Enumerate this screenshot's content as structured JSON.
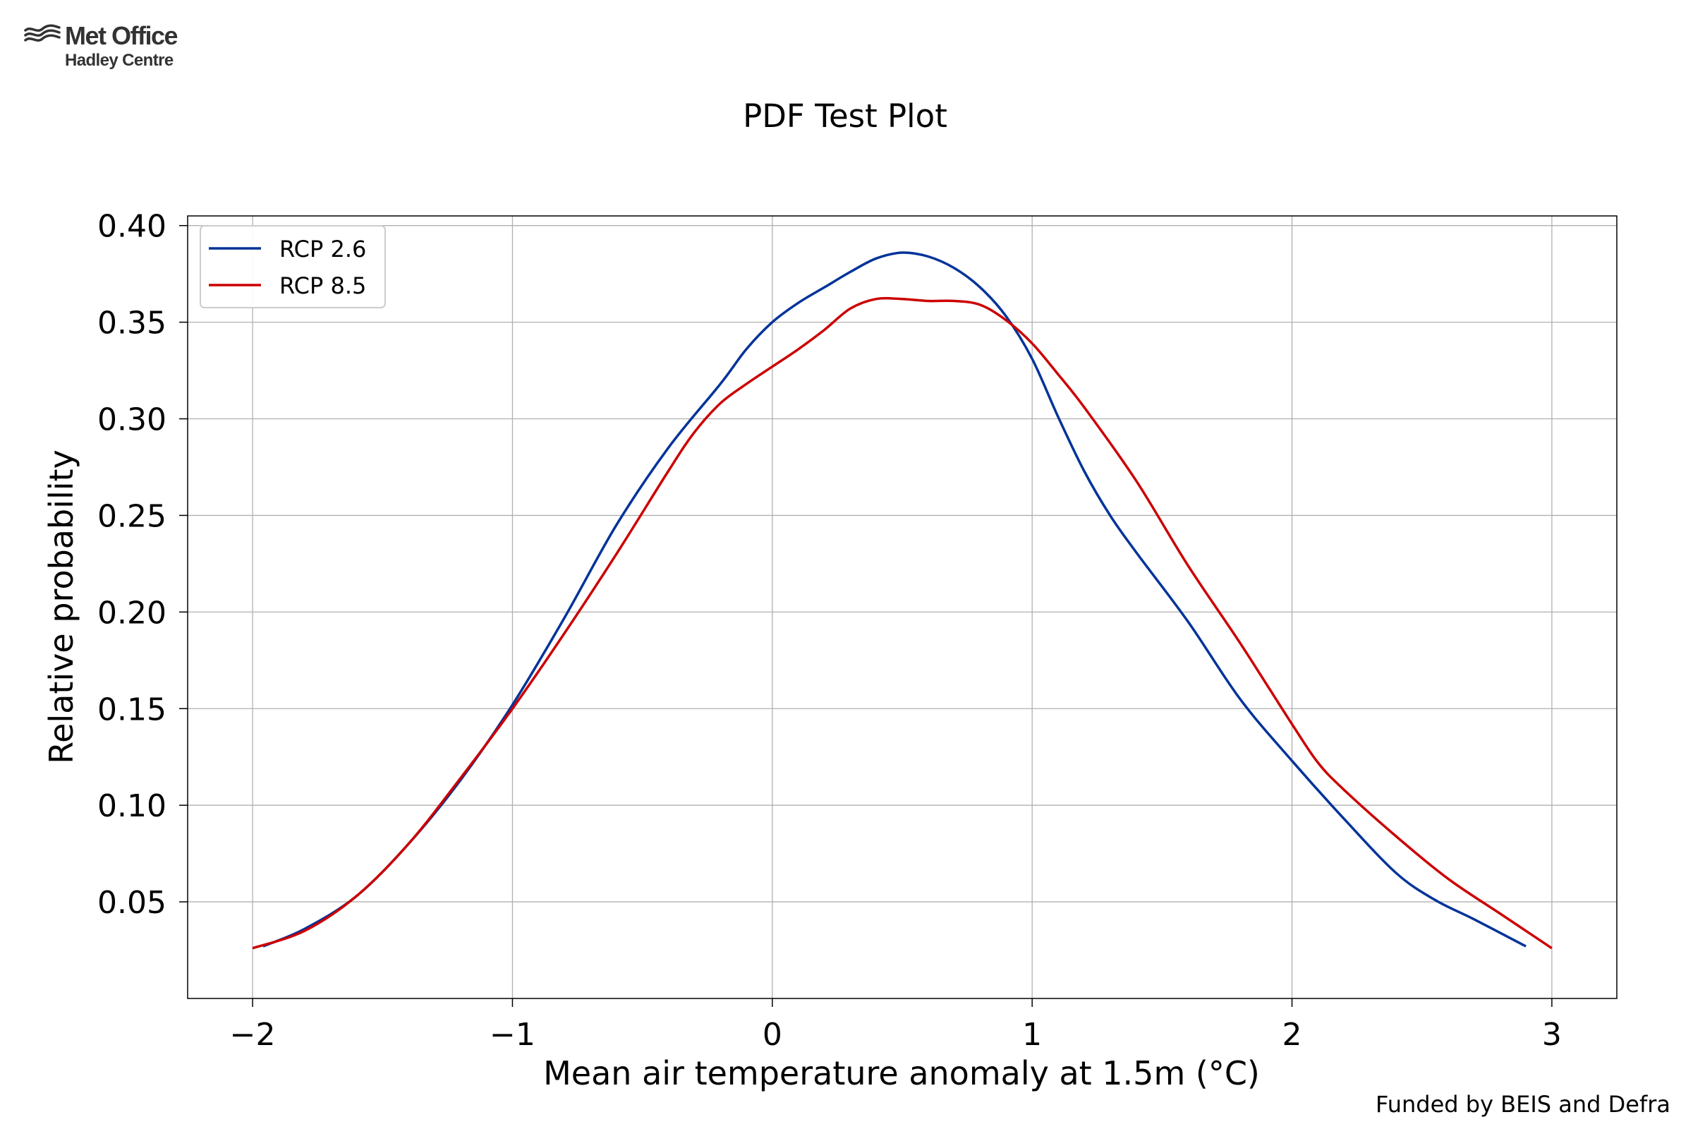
{
  "branding": {
    "logo_name": "Met Office",
    "logo_subtitle": "Hadley Centre",
    "footer": "Funded by BEIS and Defra"
  },
  "chart_data": {
    "type": "line",
    "title": "PDF Test Plot",
    "xlabel": "Mean air temperature anomaly at 1.5m (°C)",
    "ylabel": "Relative probability",
    "xlim": [
      -2.25,
      3.25
    ],
    "ylim": [
      0.0,
      0.405
    ],
    "xticks": [
      -2,
      -1,
      0,
      1,
      2,
      3
    ],
    "xtick_labels": [
      "−2",
      "−1",
      "0",
      "1",
      "2",
      "3"
    ],
    "yticks": [
      0.05,
      0.1,
      0.15,
      0.2,
      0.25,
      0.3,
      0.35,
      0.4
    ],
    "ytick_labels": [
      "0.05",
      "0.10",
      "0.15",
      "0.20",
      "0.25",
      "0.30",
      "0.35",
      "0.40"
    ],
    "grid": true,
    "legend_position": "top-left",
    "series": [
      {
        "name": "RCP 2.6",
        "color": "#003399",
        "x": [
          -1.96,
          -1.8,
          -1.6,
          -1.4,
          -1.2,
          -1.0,
          -0.8,
          -0.6,
          -0.4,
          -0.2,
          -0.1,
          0.0,
          0.1,
          0.2,
          0.3,
          0.4,
          0.5,
          0.6,
          0.7,
          0.8,
          0.9,
          1.0,
          1.1,
          1.2,
          1.3,
          1.4,
          1.6,
          1.8,
          2.0,
          2.2,
          2.4,
          2.55,
          2.7,
          2.9
        ],
        "y": [
          0.027,
          0.036,
          0.053,
          0.08,
          0.113,
          0.152,
          0.197,
          0.245,
          0.285,
          0.318,
          0.336,
          0.35,
          0.36,
          0.368,
          0.376,
          0.383,
          0.386,
          0.384,
          0.378,
          0.368,
          0.353,
          0.331,
          0.301,
          0.273,
          0.25,
          0.231,
          0.195,
          0.155,
          0.123,
          0.093,
          0.065,
          0.051,
          0.041,
          0.027
        ]
      },
      {
        "name": "RCP 8.5",
        "color": "#CC0000",
        "x": [
          -2.0,
          -1.8,
          -1.6,
          -1.4,
          -1.2,
          -1.0,
          -0.8,
          -0.6,
          -0.4,
          -0.3,
          -0.2,
          -0.1,
          0.0,
          0.1,
          0.2,
          0.3,
          0.4,
          0.5,
          0.6,
          0.7,
          0.8,
          0.9,
          1.0,
          1.1,
          1.2,
          1.4,
          1.6,
          1.8,
          2.0,
          2.1,
          2.2,
          2.4,
          2.6,
          2.8,
          3.0
        ],
        "y": [
          0.026,
          0.035,
          0.053,
          0.08,
          0.114,
          0.15,
          0.189,
          0.23,
          0.273,
          0.293,
          0.308,
          0.318,
          0.327,
          0.336,
          0.346,
          0.357,
          0.362,
          0.362,
          0.361,
          0.361,
          0.359,
          0.351,
          0.339,
          0.323,
          0.306,
          0.268,
          0.224,
          0.184,
          0.142,
          0.122,
          0.108,
          0.084,
          0.062,
          0.044,
          0.026
        ]
      }
    ]
  }
}
